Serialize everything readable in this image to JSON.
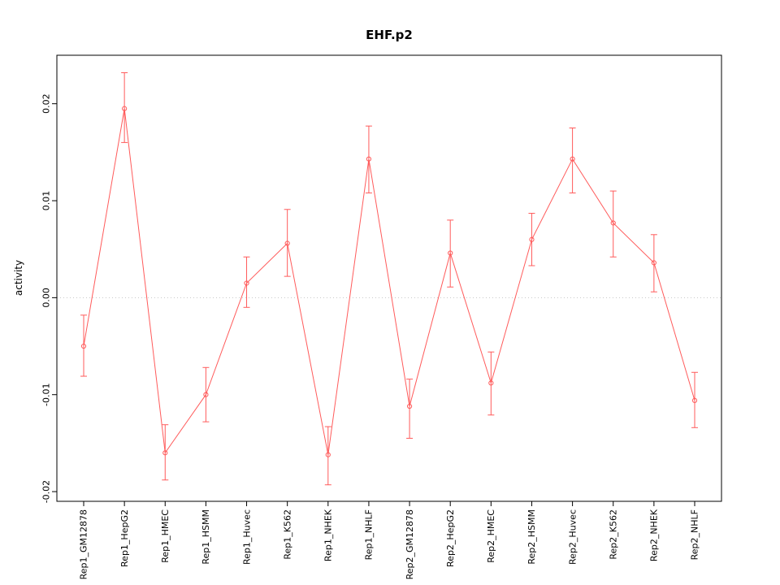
{
  "window": {
    "background": "#ffffff"
  },
  "chart_data": {
    "type": "line",
    "title": "EHF.p2",
    "xlabel": "",
    "ylabel": "activity",
    "series_color": "#ff5b5b",
    "point_style": "open-circle",
    "error_bars": true,
    "grid": "dotted-line-at-zero",
    "legend": "none",
    "ylim": [
      -0.021,
      0.025
    ],
    "yticks": [
      -0.02,
      -0.01,
      0.0,
      0.01,
      0.02
    ],
    "ytick_labels": [
      "-0.02",
      "-0.01",
      "0.00",
      "0.01",
      "0.02"
    ],
    "categories": [
      "Rep1_GM12878",
      "Rep1_HepG2",
      "Rep1_HMEC",
      "Rep1_HSMM",
      "Rep1_Huvec",
      "Rep1_K562",
      "Rep1_NHEK",
      "Rep1_NHLF",
      "Rep2_GM12878",
      "Rep2_HepG2",
      "Rep2_HMEC",
      "Rep2_HSMM",
      "Rep2_Huvec",
      "Rep2_K562",
      "Rep2_NHEK",
      "Rep2_NHLF"
    ],
    "values": [
      -0.005,
      0.0195,
      -0.016,
      -0.01,
      0.0015,
      0.0056,
      -0.0162,
      0.0143,
      -0.0112,
      0.0046,
      -0.0088,
      0.006,
      0.0143,
      0.0077,
      0.0036,
      -0.0106
    ],
    "errors_low": [
      -0.0081,
      0.016,
      -0.0188,
      -0.0128,
      -0.001,
      0.0022,
      -0.0193,
      0.0108,
      -0.0145,
      0.0011,
      -0.0121,
      0.0033,
      0.0108,
      0.0042,
      0.0006,
      -0.0134
    ],
    "errors_high": [
      -0.0018,
      0.0232,
      -0.0131,
      -0.0072,
      0.0042,
      0.0091,
      -0.0133,
      0.0177,
      -0.0084,
      0.008,
      -0.0056,
      0.0087,
      0.0175,
      0.011,
      0.0065,
      -0.0077
    ]
  }
}
